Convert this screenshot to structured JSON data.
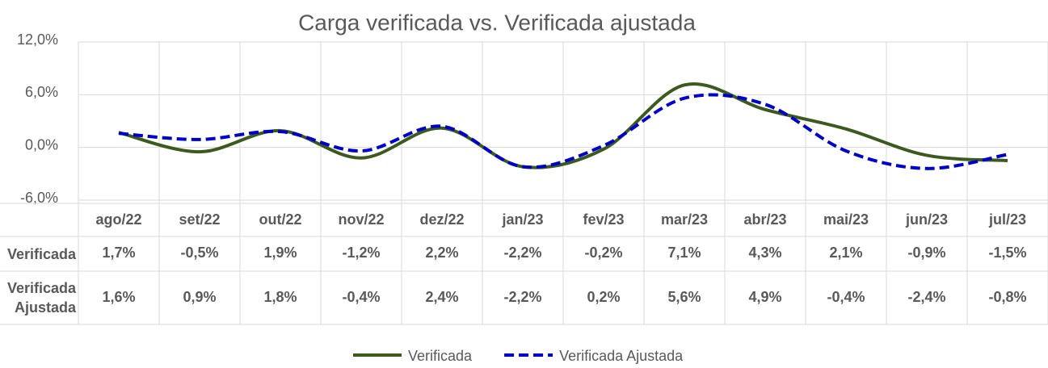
{
  "chart_data": {
    "type": "line",
    "title": "Carga verificada vs. Verificada ajustada",
    "categories": [
      "ago/22",
      "set/22",
      "out/22",
      "nov/22",
      "dez/22",
      "jan/23",
      "fev/23",
      "mar/23",
      "abr/23",
      "mai/23",
      "jun/23",
      "jul/23"
    ],
    "series": [
      {
        "name": "Verificada",
        "color": "#3d5a1e",
        "dash": false,
        "values": [
          1.7,
          -0.5,
          1.9,
          -1.2,
          2.2,
          -2.2,
          -0.2,
          7.1,
          4.3,
          2.1,
          -0.9,
          -1.5
        ],
        "value_labels": [
          "1,7%",
          "-0,5%",
          "1,9%",
          "-1,2%",
          "2,2%",
          "-2,2%",
          "-0,2%",
          "7,1%",
          "4,3%",
          "2,1%",
          "-0,9%",
          "-1,5%"
        ]
      },
      {
        "name": "Verificada Ajustada",
        "color": "#0000cc",
        "dash": true,
        "values": [
          1.6,
          0.9,
          1.8,
          -0.4,
          2.4,
          -2.2,
          0.2,
          5.6,
          4.9,
          -0.4,
          -2.4,
          -0.8
        ],
        "value_labels": [
          "1,6%",
          "0,9%",
          "1,8%",
          "-0,4%",
          "2,4%",
          "-2,2%",
          "0,2%",
          "5,6%",
          "4,9%",
          "-0,4%",
          "-2,4%",
          "-0,8%"
        ]
      }
    ],
    "ylim": [
      -6,
      12
    ],
    "yticks": [
      {
        "value": -6,
        "label": "-6,0%"
      },
      {
        "value": 0,
        "label": "0,0%"
      },
      {
        "value": 6,
        "label": "6,0%"
      },
      {
        "value": 12,
        "label": "12,0%"
      }
    ],
    "grid": true,
    "legend": "bottom",
    "smooth": true
  }
}
